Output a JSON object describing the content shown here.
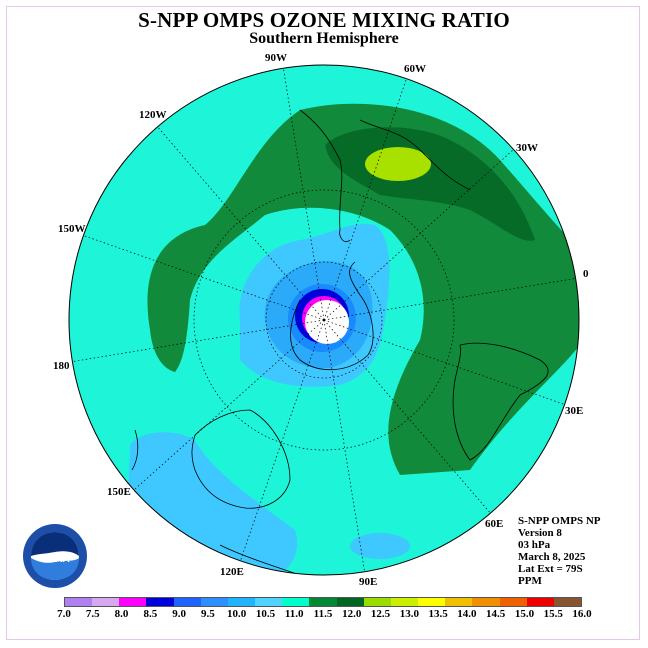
{
  "title": "S-NPP OMPS OZONE MIXING RATIO",
  "subtitle": "Southern Hemisphere",
  "longitude_labels": [
    "90W",
    "60W",
    "30W",
    "0",
    "30E",
    "60E",
    "90E",
    "120E",
    "150E",
    "180",
    "150W",
    "120W"
  ],
  "info": {
    "instrument": "S-NPP OMPS NP",
    "version": "Version 8",
    "level": "03 hPa",
    "date": "March 8, 2025",
    "lat_ext": "Lat Ext = 79S",
    "units": "PPM"
  },
  "logo_text": "NOAA",
  "colorbar": {
    "colors": [
      "#b07ff0",
      "#d6a8f0",
      "#ff00ff",
      "#0000dd",
      "#1e64ff",
      "#2e90ff",
      "#1eb4ff",
      "#50d4ff",
      "#00ffcc",
      "#008833",
      "#006622",
      "#99dd00",
      "#ccee00",
      "#ffff00",
      "#f0c000",
      "#f09000",
      "#f06000",
      "#ee0000",
      "#885533"
    ],
    "ticks": [
      "7.0",
      "7.5",
      "8.0",
      "8.5",
      "9.0",
      "9.5",
      "10.0",
      "10.5",
      "11.0",
      "11.5",
      "12.0",
      "12.5",
      "13.0",
      "13.5",
      "14.0",
      "14.5",
      "15.0",
      "15.5",
      "16.0"
    ]
  },
  "map_colors": {
    "background": "#1ef5d8",
    "band_11_5": "#118a3c",
    "band_12_0": "#066b27",
    "band_12_5": "#a8e000",
    "band_10_5": "#3ec8ff",
    "band_10_0": "#2aaaf8",
    "band_9_5": "#1a8aff",
    "band_9_0": "#0000dd",
    "band_8_0": "#ff00ff"
  }
}
